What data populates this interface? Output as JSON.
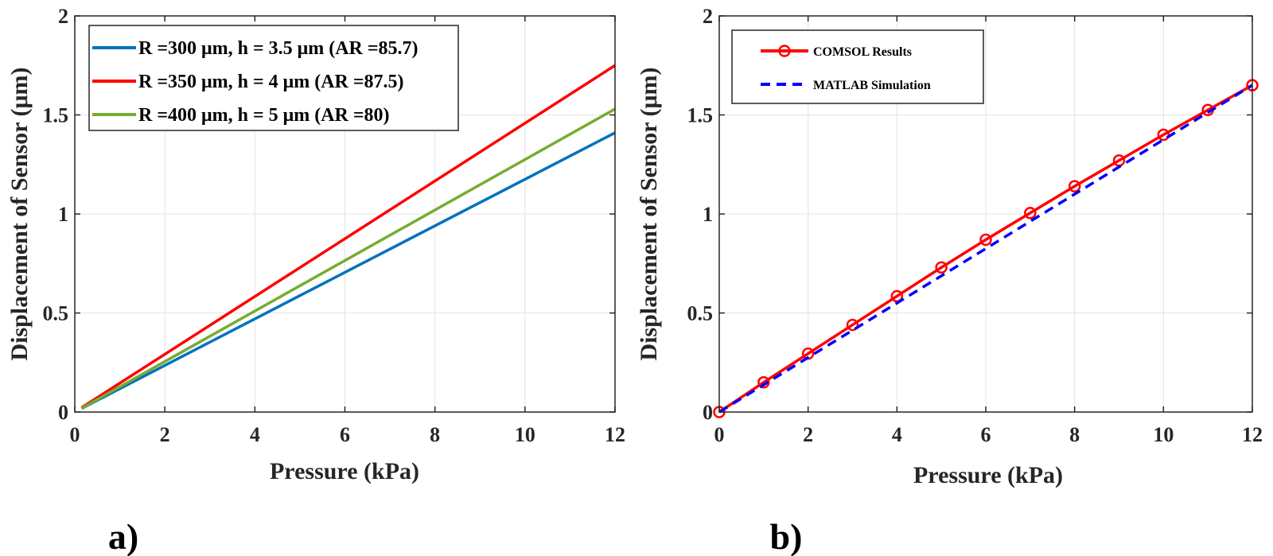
{
  "chart_data": [
    {
      "type": "line",
      "panel_label": "a)",
      "title": "",
      "xlabel": "Pressure (kPa)",
      "ylabel": "Displacement of Sensor (μm)",
      "xlim": [
        0,
        12
      ],
      "ylim": [
        0,
        2
      ],
      "xticks": [
        0,
        2,
        4,
        6,
        8,
        10,
        12
      ],
      "yticks": [
        0,
        0.5,
        1,
        1.5,
        2
      ],
      "xtick_labels": [
        "0",
        "2",
        "4",
        "6",
        "8",
        "10",
        "12"
      ],
      "ytick_labels": [
        "0",
        "0.5",
        "1",
        "1.5",
        "2"
      ],
      "grid": true,
      "legend_position": "top-left",
      "series": [
        {
          "name": "R =300 μm, h = 3.5 μm (AR =85.7)",
          "color": "#0072BD",
          "style": "solid",
          "marker": "none",
          "x": [
            0.15,
            12
          ],
          "y": [
            0.018,
            1.41
          ]
        },
        {
          "name": "R =350 μm, h = 4 μm (AR =87.5)",
          "color": "#FF0000",
          "style": "solid",
          "marker": "none",
          "x": [
            0.15,
            12
          ],
          "y": [
            0.022,
            1.75
          ]
        },
        {
          "name": "R =400 μm, h = 5 μm (AR =80)",
          "color": "#77AC30",
          "style": "solid",
          "marker": "none",
          "x": [
            0.15,
            12
          ],
          "y": [
            0.019,
            1.53
          ]
        }
      ]
    },
    {
      "type": "line",
      "panel_label": "b)",
      "title": "",
      "xlabel": "Pressure (kPa)",
      "ylabel": "Displacement of Sensor (μm)",
      "xlim": [
        0,
        12
      ],
      "ylim": [
        0,
        2
      ],
      "xticks": [
        0,
        2,
        4,
        6,
        8,
        10,
        12
      ],
      "yticks": [
        0,
        0.5,
        1,
        1.5,
        2
      ],
      "xtick_labels": [
        "0",
        "2",
        "4",
        "6",
        "8",
        "10",
        "12"
      ],
      "ytick_labels": [
        "0",
        "0.5",
        "1",
        "1.5",
        "2"
      ],
      "grid": true,
      "legend_position": "top-left",
      "series": [
        {
          "name": "COMSOL Results",
          "color": "#FF0000",
          "style": "solid",
          "marker": "circle",
          "x": [
            0,
            1,
            2,
            3,
            4,
            5,
            6,
            7,
            8,
            9,
            10,
            11,
            12
          ],
          "y": [
            0,
            0.15,
            0.295,
            0.44,
            0.585,
            0.73,
            0.87,
            1.005,
            1.14,
            1.27,
            1.4,
            1.525,
            1.65
          ]
        },
        {
          "name": "MATLAB Simulation",
          "color": "#0000FF",
          "style": "dashed",
          "marker": "none",
          "x": [
            0,
            12
          ],
          "y": [
            0,
            1.65
          ]
        }
      ]
    }
  ]
}
